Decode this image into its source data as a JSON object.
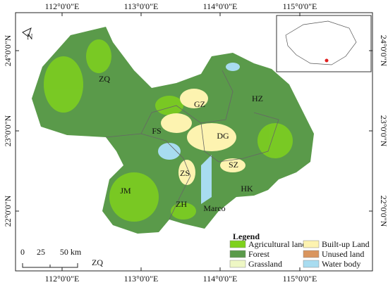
{
  "map": {
    "top_labels": [
      "112°0'0\"E",
      "113°0'0\"E",
      "114°0'0\"E",
      "115°0'0\"E"
    ],
    "bottom_labels": [
      "112°0'0\"E",
      "113°0'0\"E",
      "114°0'0\"E",
      "115°0'0\"E"
    ],
    "left_labels": [
      "24°0'0\"N",
      "23°0'0\"N",
      "22°0'0\"N"
    ],
    "right_labels": [
      "24°0'0\"N",
      "23°0'0\"N",
      "22°0'0\"N"
    ],
    "regions": [
      "ZQ",
      "GZ",
      "HZ",
      "FS",
      "DG",
      "SZ",
      "ZS",
      "JM",
      "HK",
      "ZH",
      "Marco"
    ],
    "north": "N",
    "scale_bar": [
      "0",
      "25",
      "50 km"
    ],
    "caption": "ZQ",
    "legend": {
      "title": "Legend",
      "items": [
        {
          "label": "Agricultural land",
          "color": "#7fd11d"
        },
        {
          "label": "Forest",
          "color": "#5a9a4a"
        },
        {
          "label": "Grassland",
          "color": "#eef7c4"
        },
        {
          "label": "Built-up Land",
          "color": "#fdf3b0"
        },
        {
          "label": "Unused land",
          "color": "#d9955e"
        },
        {
          "label": "Water body",
          "color": "#a8dcf0"
        }
      ]
    }
  }
}
